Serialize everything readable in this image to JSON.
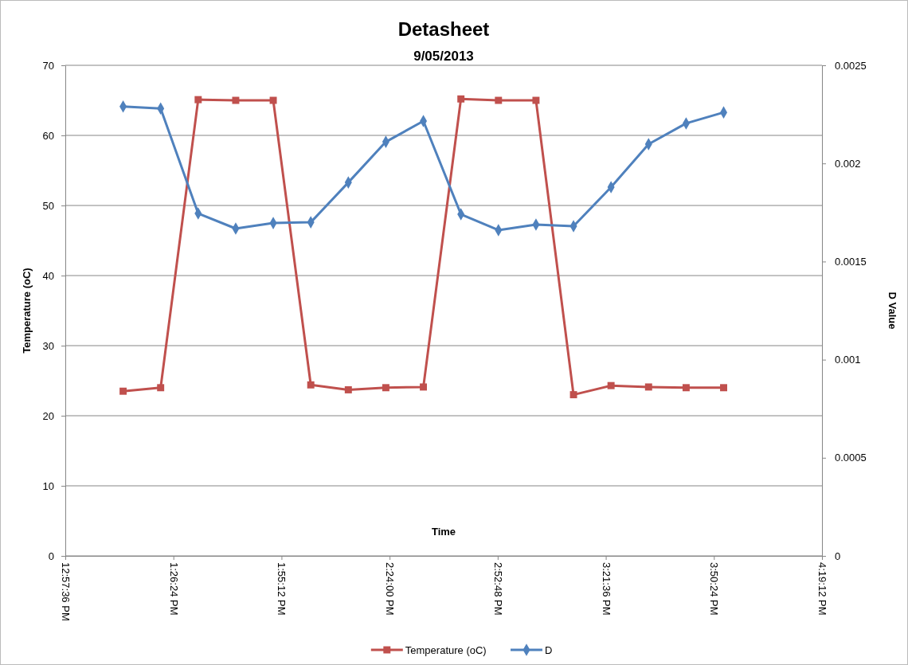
{
  "chart_data": {
    "type": "line",
    "title": "Detasheet",
    "subtitle": "9/05/2013",
    "xlabel": "Time",
    "ylabel": "Temperature (oC)",
    "y2label": "D Value",
    "x": [
      13.2167,
      13.3833,
      13.55,
      13.7167,
      13.8833,
      14.05,
      14.2167,
      14.3833,
      14.55,
      14.7167,
      14.8833,
      15.05,
      15.2167,
      15.3833,
      15.55,
      15.7167,
      15.8833
    ],
    "series": [
      {
        "name": "Temperature (oC)",
        "color": "#c0504d",
        "marker": "square",
        "values": [
          23.5,
          24,
          65.1,
          65,
          65,
          24.4,
          23.7,
          24,
          24.1,
          65.2,
          65,
          65,
          23,
          24.3,
          24.1,
          24,
          24
        ]
      },
      {
        "name": "D",
        "color": "#4f81bd",
        "marker": "diamond",
        "axis": "y2",
        "values": [
          0.00229,
          0.00228,
          0.001745,
          0.001668,
          0.001696,
          0.0017,
          0.001903,
          0.00211,
          0.002216,
          0.001741,
          0.00166,
          0.001688,
          0.00168,
          0.001879,
          0.002098,
          0.002204,
          0.00226
        ]
      }
    ],
    "xlim": [
      12.96,
      16.32
    ],
    "xticks": [
      {
        "value": 12.96,
        "label": "12:57:36 PM"
      },
      {
        "value": 13.44,
        "label": "1:26:24 PM"
      },
      {
        "value": 13.92,
        "label": "1:55:12 PM"
      },
      {
        "value": 14.4,
        "label": "2:24:00 PM"
      },
      {
        "value": 14.88,
        "label": "2:52:48 PM"
      },
      {
        "value": 15.36,
        "label": "3:21:36 PM"
      },
      {
        "value": 15.84,
        "label": "3:50:24 PM"
      },
      {
        "value": 16.32,
        "label": "4:19:12 PM"
      }
    ],
    "ylim": [
      0,
      70
    ],
    "yticks": [
      0,
      10,
      20,
      30,
      40,
      50,
      60,
      70
    ],
    "y2lim": [
      0,
      0.0025
    ],
    "y2ticks": [
      0,
      0.0005,
      0.001,
      0.0015,
      0.002,
      0.0025
    ],
    "grid": "y",
    "legend": "bottom",
    "line_style": "solid"
  }
}
